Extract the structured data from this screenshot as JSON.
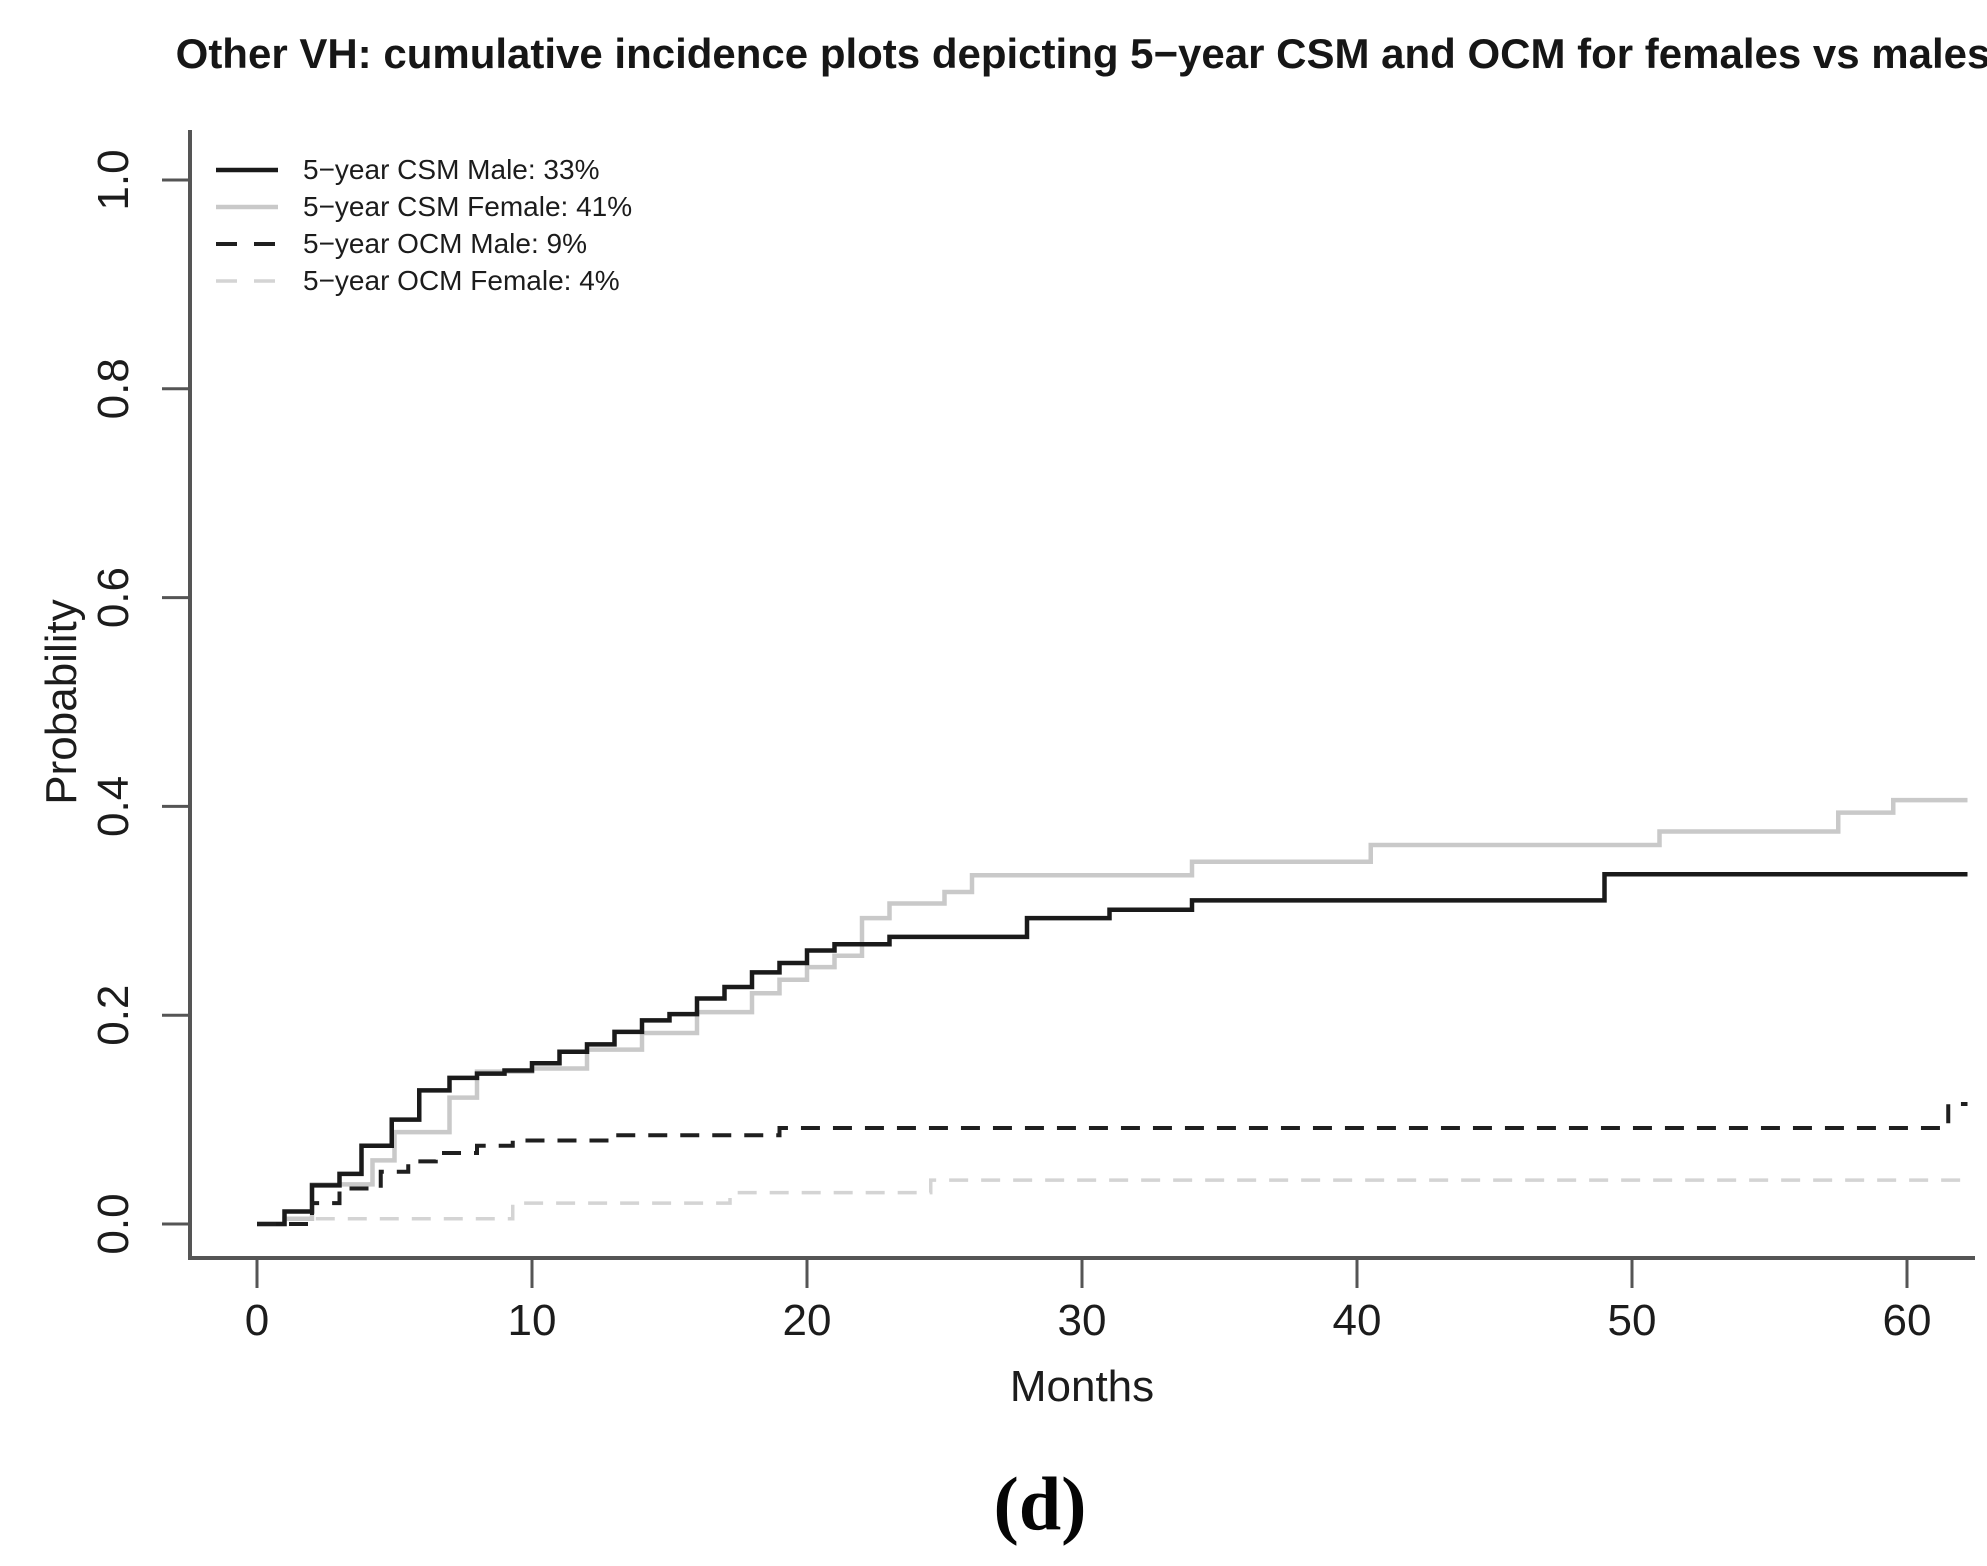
{
  "caption": "(d)",
  "chart_data": {
    "type": "line",
    "subtype": "step-cumulative-incidence",
    "title": "Other VH: cumulative incidence plots depicting 5−year CSM and OCM for females vs males",
    "xlabel": "Months",
    "ylabel": "Probability",
    "xlim": [
      0,
      62.2
    ],
    "ylim": [
      0,
      1.0
    ],
    "xticks": [
      0,
      10,
      20,
      30,
      40,
      50,
      60
    ],
    "yticks": [
      0.0,
      0.2,
      0.4,
      0.6,
      0.8,
      1.0
    ],
    "ytick_labels": [
      "0.0",
      "0.2",
      "0.4",
      "0.6",
      "0.8",
      "1.0"
    ],
    "grid": false,
    "legend_position": "top-left",
    "axis_color": "#555555",
    "x_end": 62.2,
    "series": [
      {
        "name": "5−year CSM Male: 33%",
        "line": "solid",
        "color": "#1a1a1a",
        "width": 4.5,
        "points": [
          [
            0,
            0
          ],
          [
            1,
            0.012
          ],
          [
            2,
            0.037
          ],
          [
            3,
            0.048
          ],
          [
            3.8,
            0.075
          ],
          [
            4.9,
            0.1
          ],
          [
            5.9,
            0.128
          ],
          [
            7,
            0.14
          ],
          [
            8,
            0.144
          ],
          [
            9,
            0.147
          ],
          [
            10,
            0.154
          ],
          [
            11,
            0.165
          ],
          [
            12,
            0.172
          ],
          [
            13,
            0.184
          ],
          [
            14,
            0.195
          ],
          [
            15,
            0.201
          ],
          [
            16,
            0.216
          ],
          [
            17,
            0.227
          ],
          [
            18,
            0.241
          ],
          [
            19,
            0.25
          ],
          [
            20,
            0.262
          ],
          [
            21,
            0.268
          ],
          [
            23,
            0.275
          ],
          [
            28,
            0.293
          ],
          [
            31,
            0.301
          ],
          [
            34,
            0.31
          ],
          [
            49,
            0.335
          ]
        ]
      },
      {
        "name": "5−year CSM Female: 41%",
        "line": "solid",
        "color": "#c9c9c9",
        "width": 4.5,
        "points": [
          [
            0,
            0
          ],
          [
            1,
            0.005
          ],
          [
            2,
            0.038
          ],
          [
            4.2,
            0.061
          ],
          [
            5,
            0.088
          ],
          [
            7,
            0.121
          ],
          [
            8,
            0.146
          ],
          [
            10,
            0.149
          ],
          [
            12,
            0.167
          ],
          [
            14,
            0.183
          ],
          [
            16,
            0.203
          ],
          [
            18,
            0.221
          ],
          [
            19,
            0.234
          ],
          [
            20,
            0.246
          ],
          [
            21,
            0.257
          ],
          [
            22,
            0.293
          ],
          [
            23,
            0.307
          ],
          [
            25,
            0.318
          ],
          [
            26,
            0.334
          ],
          [
            34,
            0.347
          ],
          [
            40.5,
            0.363
          ],
          [
            51,
            0.376
          ],
          [
            57.5,
            0.394
          ],
          [
            59.5,
            0.406
          ]
        ]
      },
      {
        "name": "5−year OCM Male: 9%",
        "line": "dashed",
        "color": "#1f1f1f",
        "width": 4,
        "points": [
          [
            0,
            0
          ],
          [
            2,
            0.02
          ],
          [
            3,
            0.034
          ],
          [
            4.5,
            0.05
          ],
          [
            5.5,
            0.06
          ],
          [
            6.5,
            0.068
          ],
          [
            8,
            0.075
          ],
          [
            9.3,
            0.08
          ],
          [
            13,
            0.085
          ],
          [
            19,
            0.092
          ],
          [
            61.5,
            0.115
          ]
        ]
      },
      {
        "name": "5−year OCM Female: 4%",
        "line": "dashed",
        "color": "#d4d4d4",
        "width": 3.5,
        "points": [
          [
            0,
            0
          ],
          [
            2,
            0.005
          ],
          [
            9.3,
            0.02
          ],
          [
            17.2,
            0.03
          ],
          [
            24.5,
            0.042
          ]
        ]
      }
    ]
  }
}
